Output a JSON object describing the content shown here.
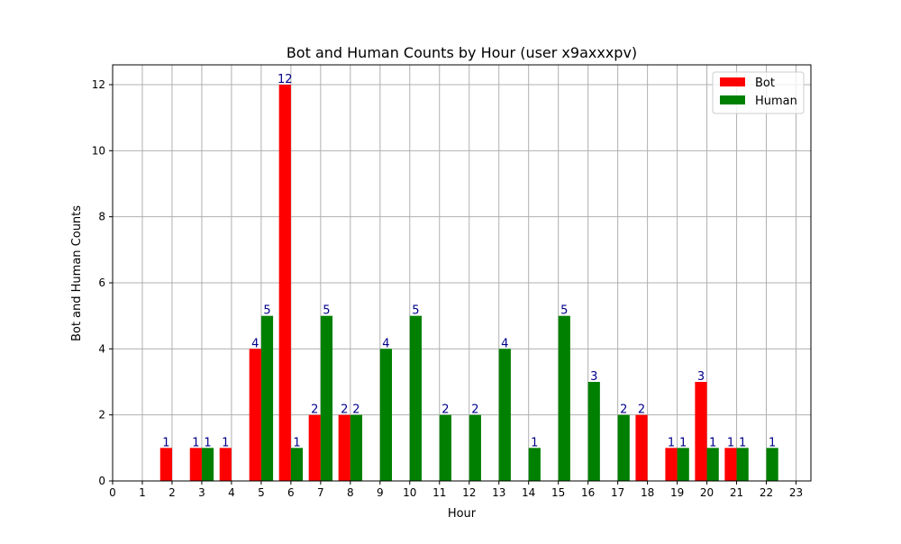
{
  "chart_data": {
    "type": "bar",
    "title": "Bot and Human Counts by Hour (user x9axxxpv)",
    "xlabel": "Hour",
    "ylabel": "Bot and Human Counts",
    "x_ticks": [
      "0",
      "1",
      "2",
      "3",
      "4",
      "5",
      "6",
      "7",
      "8",
      "9",
      "10",
      "11",
      "12",
      "13",
      "14",
      "15",
      "16",
      "17",
      "18",
      "19",
      "20",
      "21",
      "22",
      "23"
    ],
    "y_ticks": [
      "0",
      "2",
      "4",
      "6",
      "8",
      "10",
      "12"
    ],
    "xlim": [
      0,
      23.5
    ],
    "ylim": [
      0,
      12.6
    ],
    "grid": true,
    "legend_position": "top-right",
    "series": [
      {
        "name": "Bot",
        "color": "#ff0000",
        "points": [
          {
            "x": 2,
            "y": 1,
            "label": "1"
          },
          {
            "x": 3,
            "y": 1,
            "label": "1"
          },
          {
            "x": 4,
            "y": 1,
            "label": "1"
          },
          {
            "x": 5,
            "y": 4,
            "label": "4"
          },
          {
            "x": 6,
            "y": 12,
            "label": "12"
          },
          {
            "x": 7,
            "y": 2,
            "label": "2"
          },
          {
            "x": 8,
            "y": 2,
            "label": "2"
          },
          {
            "x": 18,
            "y": 2,
            "label": "2"
          },
          {
            "x": 19,
            "y": 1,
            "label": "1"
          },
          {
            "x": 20,
            "y": 3,
            "label": "3"
          },
          {
            "x": 21,
            "y": 1,
            "label": "1"
          }
        ]
      },
      {
        "name": "Human",
        "color": "#008000",
        "points": [
          {
            "x": 3,
            "y": 1,
            "label": "1"
          },
          {
            "x": 5,
            "y": 5,
            "label": "5"
          },
          {
            "x": 6,
            "y": 1,
            "label": "1"
          },
          {
            "x": 7,
            "y": 5,
            "label": "5"
          },
          {
            "x": 8,
            "y": 2,
            "label": "2"
          },
          {
            "x": 9,
            "y": 4,
            "label": "4"
          },
          {
            "x": 10,
            "y": 5,
            "label": "5"
          },
          {
            "x": 11,
            "y": 2,
            "label": "2"
          },
          {
            "x": 12,
            "y": 2,
            "label": "2"
          },
          {
            "x": 13,
            "y": 4,
            "label": "4"
          },
          {
            "x": 14,
            "y": 1,
            "label": "1"
          },
          {
            "x": 15,
            "y": 5,
            "label": "5"
          },
          {
            "x": 16,
            "y": 3,
            "label": "3"
          },
          {
            "x": 17,
            "y": 2,
            "label": "2"
          },
          {
            "x": 19,
            "y": 1,
            "label": "1"
          },
          {
            "x": 20,
            "y": 1,
            "label": "1"
          },
          {
            "x": 21,
            "y": 1,
            "label": "1"
          },
          {
            "x": 22,
            "y": 1,
            "label": "1"
          }
        ]
      }
    ]
  }
}
